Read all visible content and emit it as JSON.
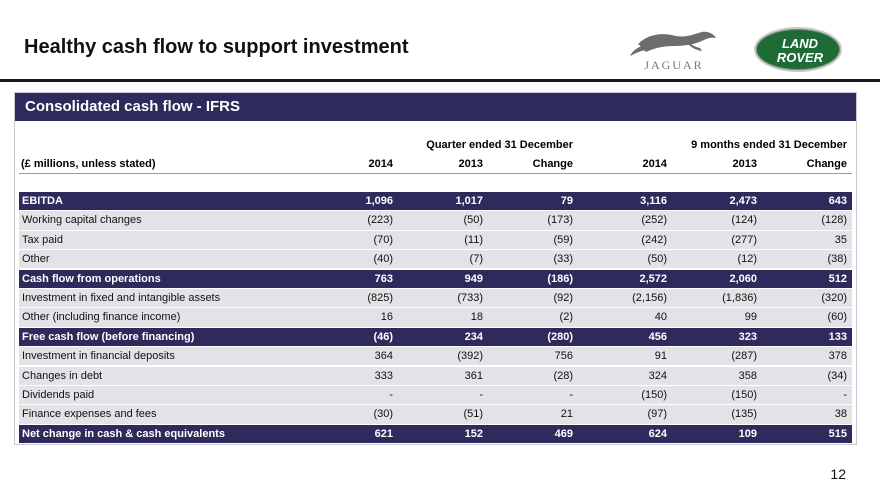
{
  "slide": {
    "title": "Healthy cash flow to support investment",
    "page_number": "12"
  },
  "logos": {
    "jaguar": "JAGUAR",
    "land_rover_line1": "LAND",
    "land_rover_line2": "ROVER"
  },
  "panel": {
    "title": "Consolidated cash flow - IFRS",
    "group_headers": [
      "Quarter ended 31 December",
      "9 months ended 31 December"
    ],
    "column_headers": [
      "(£ millions, unless stated)",
      "2014",
      "2013",
      "Change",
      "2014",
      "2013",
      "Change"
    ],
    "rows": [
      {
        "label": "EBITDA",
        "bold": true,
        "values": [
          "1,096",
          "1,017",
          "79",
          "3,116",
          "2,473",
          "643"
        ]
      },
      {
        "label": "Working capital changes",
        "bold": false,
        "values": [
          "(223)",
          "(50)",
          "(173)",
          "(252)",
          "(124)",
          "(128)"
        ]
      },
      {
        "label": "Tax paid",
        "bold": false,
        "values": [
          "(70)",
          "(11)",
          "(59)",
          "(242)",
          "(277)",
          "35"
        ]
      },
      {
        "label": "Other",
        "bold": false,
        "values": [
          "(40)",
          "(7)",
          "(33)",
          "(50)",
          "(12)",
          "(38)"
        ]
      },
      {
        "label": "Cash flow from operations",
        "bold": true,
        "values": [
          "763",
          "949",
          "(186)",
          "2,572",
          "2,060",
          "512"
        ]
      },
      {
        "label": "Investment in fixed and intangible assets",
        "bold": false,
        "values": [
          "(825)",
          "(733)",
          "(92)",
          "(2,156)",
          "(1,836)",
          "(320)"
        ]
      },
      {
        "label": "Other (including finance income)",
        "bold": false,
        "values": [
          "16",
          "18",
          "(2)",
          "40",
          "99",
          "(60)"
        ]
      },
      {
        "label": "Free cash flow (before financing)",
        "bold": true,
        "values": [
          "(46)",
          "234",
          "(280)",
          "456",
          "323",
          "133"
        ]
      },
      {
        "label": "Investment in financial deposits",
        "bold": false,
        "values": [
          "364",
          "(392)",
          "756",
          "91",
          "(287)",
          "378"
        ]
      },
      {
        "label": "Changes in debt",
        "bold": false,
        "values": [
          "333",
          "361",
          "(28)",
          "324",
          "358",
          "(34)"
        ]
      },
      {
        "label": "Dividends paid",
        "bold": false,
        "values": [
          "-",
          "-",
          "-",
          "(150)",
          "(150)",
          "-"
        ]
      },
      {
        "label": "Finance expenses and fees",
        "bold": false,
        "values": [
          "(30)",
          "(51)",
          "21",
          "(97)",
          "(135)",
          "38"
        ]
      },
      {
        "label": "Net change in cash & cash equivalents",
        "bold": true,
        "values": [
          "621",
          "152",
          "469",
          "624",
          "109",
          "515"
        ]
      }
    ]
  }
}
